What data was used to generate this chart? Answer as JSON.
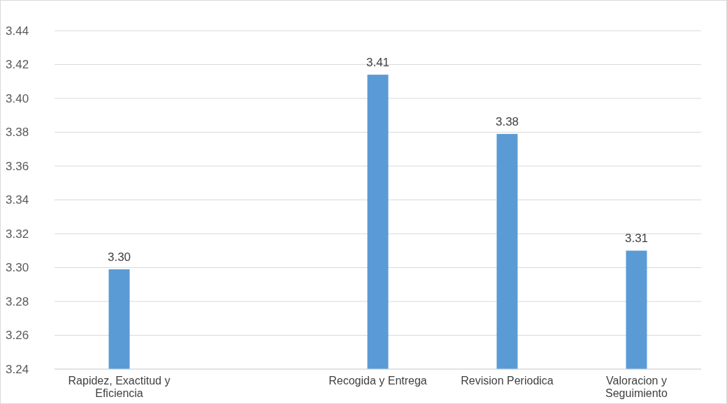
{
  "chart_data": {
    "type": "bar",
    "categories": [
      "Rapidez, Exactitud y Eficiencia",
      null,
      "Recogida y Entrega",
      "Revision Periodica",
      "Valoracion y Seguimiento"
    ],
    "values": [
      3.299,
      null,
      3.414,
      3.379,
      3.31
    ],
    "value_labels": [
      "3.30",
      null,
      "3.41",
      "3.38",
      "3.31"
    ],
    "color": "#5b9bd5",
    "ylim": [
      3.24,
      3.44
    ],
    "yticks": [
      3.24,
      3.26,
      3.28,
      {
        "value": 3.3,
        "label": "3.30"
      },
      3.32,
      3.34,
      3.36,
      3.38,
      {
        "value": 3.4,
        "label": "3.40"
      },
      3.42,
      3.44
    ],
    "grid": "y"
  }
}
